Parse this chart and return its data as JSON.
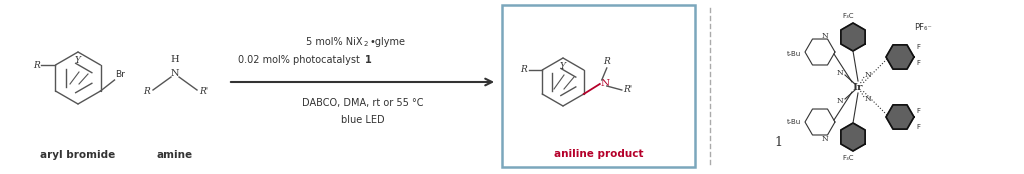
{
  "fig_width": 10.24,
  "fig_height": 1.74,
  "dpi": 100,
  "bg_color": "#ffffff",
  "text_color": "#333333",
  "label_aryl": "aryl bromide",
  "label_amine": "amine",
  "label_product": "aniline product",
  "product_box_color": "#7ba7bc",
  "product_label_color": "#b5002a",
  "dashed_line_color": "#aaaaaa",
  "cond_color": "#333333",
  "font_size_label": 7.5,
  "font_size_conditions": 7.0,
  "font_size_chem": 6.5,
  "font_size_small": 5.0
}
